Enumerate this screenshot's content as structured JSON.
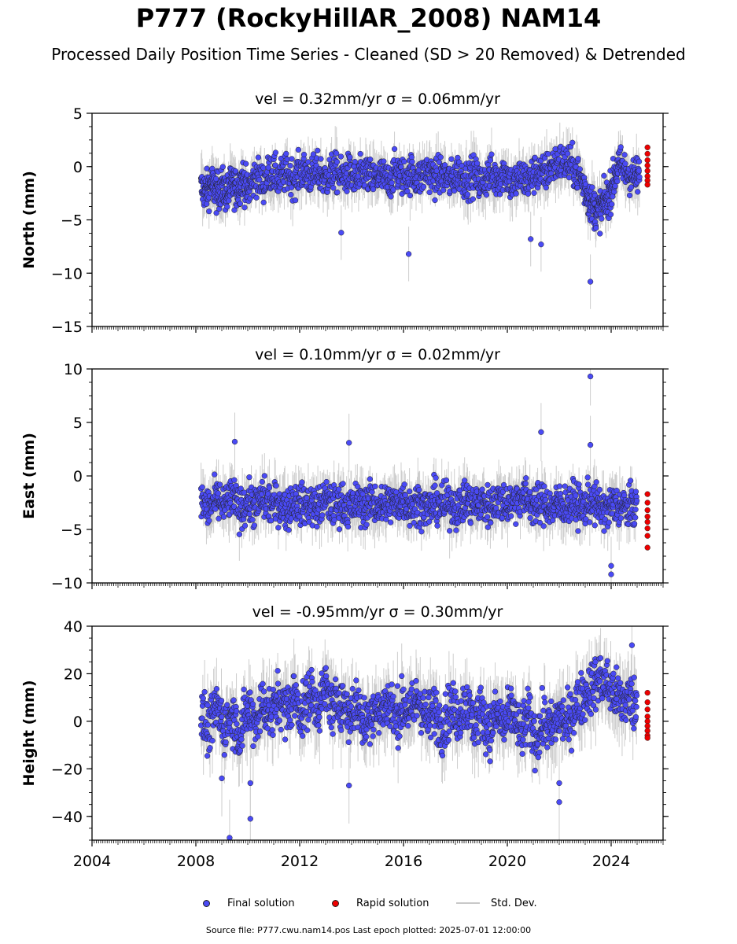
{
  "header": {
    "title": "P777 (RockyHillAR_2008) NAM14",
    "subtitle": "Processed Daily Position Time Series - Cleaned (SD > 20 Removed) & Detrended"
  },
  "legend": {
    "final_label": "Final solution",
    "rapid_label": "Rapid solution",
    "std_label": "Std. Dev."
  },
  "footer": {
    "source": "Source file: P777.cwu.nam14.pos  Last epoch plotted: 2025-07-01 12:00:00"
  },
  "colors": {
    "final": "#4a4af5",
    "rapid": "#ee0000",
    "std": "#c8c8c8",
    "marker_edge": "#222222"
  },
  "chart_data": [
    {
      "type": "scatter",
      "panel": "north",
      "title": "vel = 0.32mm/yr   σ = 0.06mm/yr",
      "ylabel": "North (mm)",
      "xlim": [
        2004,
        2026
      ],
      "ylim": [
        -15,
        5
      ],
      "yticks": [
        5,
        0,
        -5,
        -10,
        -15
      ],
      "yticklabels": [
        "5",
        "0",
        "−5",
        "−10",
        "−15"
      ],
      "series": [
        {
          "name": "Final solution",
          "x": [
            2008.2,
            2008.4,
            2008.6,
            2008.8,
            2009.0,
            2009.2,
            2009.4,
            2009.6,
            2009.8,
            2010.0,
            2010.3,
            2010.6,
            2010.9,
            2011.2,
            2011.5,
            2011.8,
            2012.1,
            2012.4,
            2012.7,
            2013.0,
            2013.3,
            2013.6,
            2013.9,
            2014.2,
            2014.5,
            2014.8,
            2015.1,
            2015.4,
            2015.7,
            2016.0,
            2016.3,
            2016.6,
            2016.9,
            2017.2,
            2017.5,
            2017.8,
            2018.1,
            2018.4,
            2018.7,
            2019.0,
            2019.3,
            2019.6,
            2019.9,
            2020.2,
            2020.5,
            2020.8,
            2021.1,
            2021.4,
            2021.7,
            2022.0,
            2022.3,
            2022.6,
            2022.9,
            2023.1,
            2023.3,
            2023.5,
            2023.7,
            2023.9,
            2024.1,
            2024.3,
            2024.6,
            2024.9,
            2025.1
          ],
          "y": [
            -2.0,
            -2.3,
            -1.5,
            -2.5,
            -1.8,
            -2.6,
            -1.6,
            -2.2,
            -1.0,
            -2.4,
            -0.8,
            -1.5,
            -0.4,
            -1.2,
            -0.6,
            -1.1,
            -0.3,
            -0.9,
            -0.5,
            -1.2,
            -0.4,
            -1.0,
            -0.6,
            -1.4,
            -0.5,
            -1.3,
            -0.8,
            -1.5,
            -0.4,
            -1.0,
            -0.6,
            -1.2,
            -0.3,
            -1.1,
            -0.7,
            -1.4,
            -0.5,
            -1.3,
            -0.8,
            -1.6,
            -0.7,
            -1.1,
            -0.4,
            -1.8,
            -0.9,
            -1.4,
            -0.5,
            -0.8,
            0.1,
            0.4,
            0.3,
            -0.2,
            -1.5,
            -2.8,
            -3.8,
            -4.2,
            -3.5,
            -3.0,
            -1.2,
            0.2,
            -0.6,
            -1.0,
            -0.8
          ],
          "spread": 1.6
        },
        {
          "name": "Rapid solution",
          "x": [
            2025.4,
            2025.4,
            2025.4,
            2025.4,
            2025.4,
            2025.4,
            2025.4,
            2025.4
          ],
          "y": [
            1.8,
            1.2,
            0.6,
            0.1,
            -0.4,
            -0.9,
            -1.3,
            -1.7
          ]
        }
      ],
      "outliers": {
        "x": [
          2013.6,
          2016.2,
          2020.9,
          2021.3,
          2023.2
        ],
        "y": [
          -6.2,
          -8.2,
          -6.8,
          -7.3,
          -10.8
        ]
      }
    },
    {
      "type": "scatter",
      "panel": "east",
      "title": "vel = 0.10mm/yr   σ = 0.02mm/yr",
      "ylabel": "East (mm)",
      "xlim": [
        2004,
        2026
      ],
      "ylim": [
        -10,
        10
      ],
      "yticks": [
        10,
        5,
        0,
        -5,
        -10
      ],
      "yticklabels": [
        "10",
        "5",
        "0",
        "−5",
        "−10"
      ],
      "series": [
        {
          "name": "Final solution",
          "x": [
            2008.2,
            2008.5,
            2008.8,
            2009.1,
            2009.4,
            2009.7,
            2010.0,
            2010.3,
            2010.6,
            2010.9,
            2011.2,
            2011.5,
            2011.8,
            2012.1,
            2012.4,
            2012.7,
            2013.0,
            2013.3,
            2013.6,
            2013.9,
            2014.2,
            2014.5,
            2014.8,
            2015.1,
            2015.4,
            2015.7,
            2016.0,
            2016.3,
            2016.6,
            2016.9,
            2017.2,
            2017.5,
            2017.8,
            2018.1,
            2018.4,
            2018.7,
            2019.0,
            2019.3,
            2019.6,
            2019.9,
            2020.2,
            2020.5,
            2020.8,
            2021.1,
            2021.4,
            2021.7,
            2022.0,
            2022.3,
            2022.6,
            2022.9,
            2023.2,
            2023.5,
            2023.8,
            2024.1,
            2024.4,
            2024.7,
            2025.0
          ],
          "y": [
            -2.5,
            -3.0,
            -2.2,
            -2.8,
            -2.0,
            -3.1,
            -2.4,
            -2.9,
            -2.1,
            -2.7,
            -2.5,
            -3.2,
            -2.3,
            -2.8,
            -2.6,
            -3.0,
            -2.2,
            -2.9,
            -2.4,
            -3.1,
            -2.6,
            -2.8,
            -2.3,
            -3.0,
            -2.5,
            -2.7,
            -2.2,
            -2.9,
            -2.5,
            -3.1,
            -2.4,
            -2.8,
            -2.6,
            -3.0,
            -2.3,
            -2.7,
            -2.5,
            -2.9,
            -2.2,
            -2.6,
            -2.4,
            -1.9,
            -2.3,
            -2.8,
            -2.5,
            -3.0,
            -2.6,
            -2.8,
            -2.4,
            -3.1,
            -2.2,
            -2.9,
            -3.2,
            -2.7,
            -2.9,
            -3.0,
            -2.8
          ],
          "spread": 1.7
        },
        {
          "name": "Rapid solution",
          "x": [
            2025.4,
            2025.4,
            2025.4,
            2025.4,
            2025.4,
            2025.4,
            2025.4,
            2025.4
          ],
          "y": [
            -1.7,
            -2.5,
            -3.2,
            -3.8,
            -4.3,
            -4.9,
            -5.6,
            -6.7
          ]
        }
      ],
      "outliers": {
        "x": [
          2009.5,
          2013.9,
          2021.3,
          2023.2,
          2023.2,
          2024.0,
          2024.0
        ],
        "y": [
          3.2,
          3.1,
          4.1,
          9.3,
          2.9,
          -8.4,
          -9.2
        ]
      }
    },
    {
      "type": "scatter",
      "panel": "height",
      "title": "vel = -0.95mm/yr   σ = 0.30mm/yr",
      "ylabel": "Height (mm)",
      "xlim": [
        2004,
        2026
      ],
      "ylim": [
        -50,
        40
      ],
      "yticks": [
        40,
        20,
        0,
        -20,
        -40
      ],
      "yticklabels": [
        "40",
        "20",
        "0",
        "−20",
        "−40"
      ],
      "series": [
        {
          "name": "Final solution",
          "x": [
            2008.2,
            2008.5,
            2008.8,
            2009.1,
            2009.4,
            2009.7,
            2010.0,
            2010.3,
            2010.6,
            2010.9,
            2011.2,
            2011.5,
            2011.8,
            2012.1,
            2012.4,
            2012.7,
            2013.0,
            2013.3,
            2013.6,
            2013.9,
            2014.2,
            2014.5,
            2014.8,
            2015.1,
            2015.4,
            2015.7,
            2016.0,
            2016.3,
            2016.6,
            2016.9,
            2017.2,
            2017.5,
            2017.8,
            2018.1,
            2018.4,
            2018.7,
            2019.0,
            2019.3,
            2019.6,
            2019.9,
            2020.2,
            2020.5,
            2020.8,
            2021.1,
            2021.4,
            2021.7,
            2022.0,
            2022.3,
            2022.6,
            2022.9,
            2023.2,
            2023.5,
            2023.8,
            2024.1,
            2024.4,
            2024.7,
            2025.0
          ],
          "y": [
            2,
            -4,
            6,
            -2,
            3,
            -6,
            5,
            0,
            8,
            2,
            10,
            4,
            11,
            3,
            12,
            6,
            14,
            5,
            10,
            2,
            8,
            -2,
            6,
            3,
            9,
            1,
            7,
            4,
            10,
            0,
            5,
            -3,
            6,
            2,
            8,
            -1,
            4,
            -4,
            3,
            -2,
            5,
            -6,
            2,
            -8,
            0,
            -4,
            3,
            -2,
            6,
            10,
            14,
            18,
            16,
            12,
            8,
            10,
            6
          ],
          "spread": 10
        },
        {
          "name": "Rapid solution",
          "x": [
            2025.4,
            2025.4,
            2025.4,
            2025.4,
            2025.4,
            2025.4,
            2025.4,
            2025.4,
            2025.4
          ],
          "y": [
            12,
            8,
            5,
            2,
            0,
            -2,
            -4,
            -6,
            -7
          ]
        }
      ],
      "outliers": {
        "x": [
          2009.0,
          2009.3,
          2010.1,
          2010.1,
          2013.9,
          2022.0,
          2022.0,
          2024.8
        ],
        "y": [
          -24,
          -49,
          -41,
          -26,
          -27,
          -26,
          -34,
          32
        ]
      }
    }
  ],
  "xaxis": {
    "ticks": [
      2004,
      2008,
      2012,
      2016,
      2020,
      2024
    ],
    "labels": [
      "2004",
      "2008",
      "2012",
      "2016",
      "2020",
      "2024"
    ]
  }
}
